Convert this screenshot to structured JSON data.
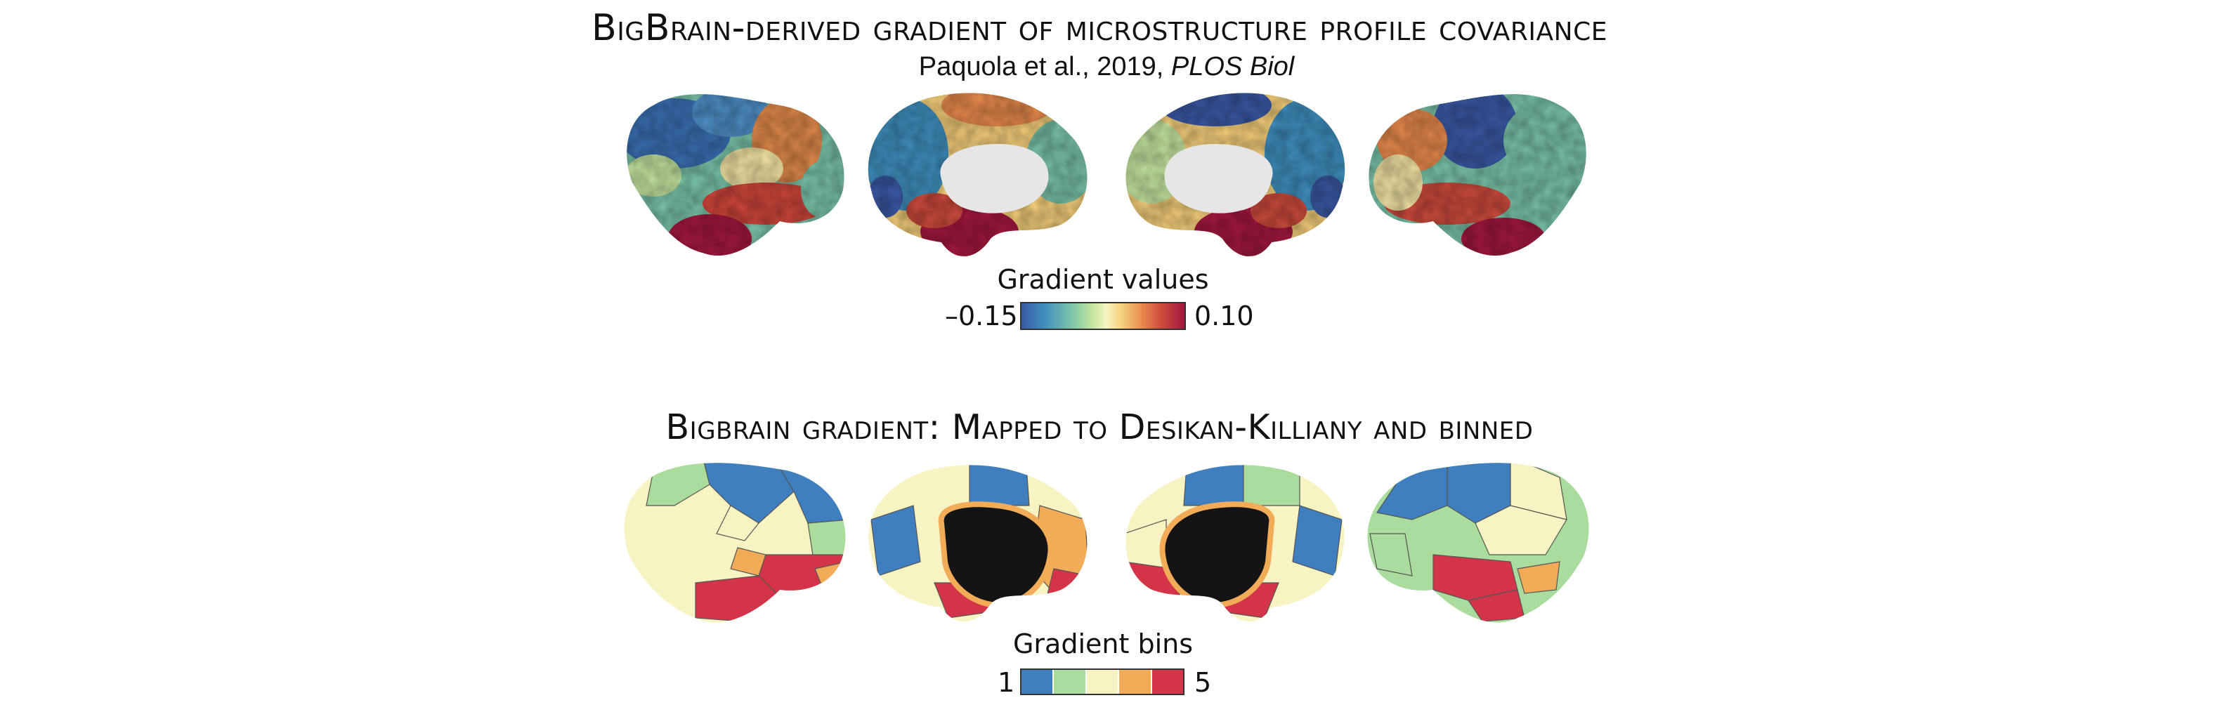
{
  "top_panel": {
    "title": "BigBrain-derived gradient of microstructure profile covariance",
    "citation_text": "Paquola et al., 2019, ",
    "citation_journal": "PLOS Biol",
    "legend": {
      "title": "Gradient values",
      "min_label": "–0.15",
      "max_label": "0.10",
      "min_value": -0.15,
      "max_value": 0.1
    },
    "views": [
      "left-lateral",
      "left-medial",
      "right-medial",
      "right-lateral"
    ]
  },
  "bottom_panel": {
    "title": "Bigbrain gradient: Mapped to Desikan-Killiany and binned",
    "legend": {
      "title": "Gradient bins",
      "min_label": "1",
      "max_label": "5",
      "bin_colors": [
        "#3f7fc0",
        "#a9dc9d",
        "#f7f3c2",
        "#f2ab57",
        "#d4344a"
      ]
    },
    "views": [
      "left-lateral",
      "left-medial",
      "right-medial",
      "right-lateral"
    ]
  },
  "colors": {
    "bin1": "#3f7fc0",
    "bin2": "#a9dc9d",
    "bin3": "#f7f3c2",
    "bin4": "#f2ab57",
    "bin5": "#d4344a",
    "medial_wall_top": "#e6e6e6",
    "medial_wall_bottom": "#141414"
  }
}
